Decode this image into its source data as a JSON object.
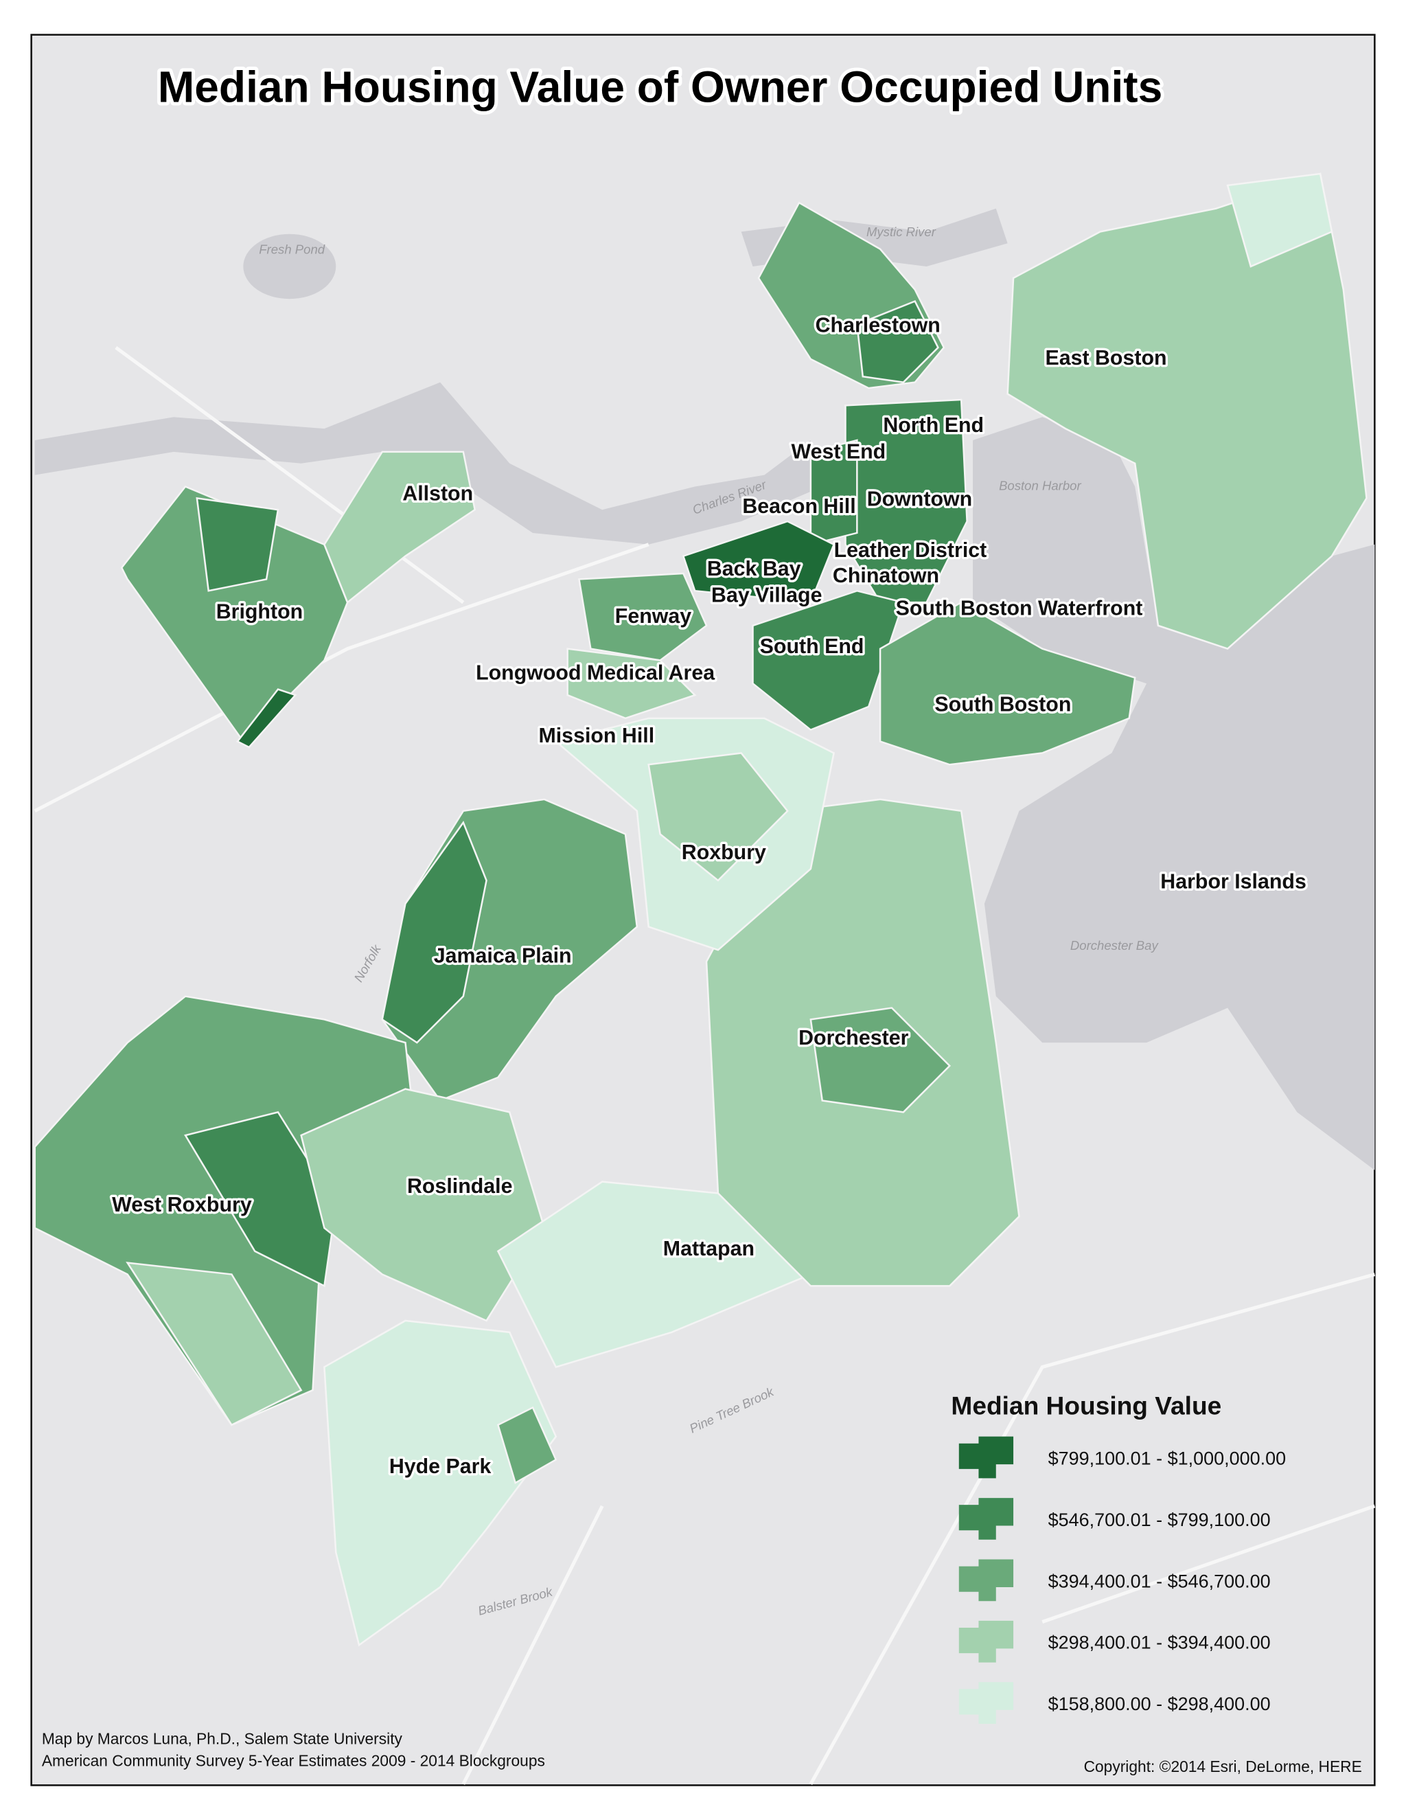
{
  "title": "Median Housing Value of Owner Occupied Units",
  "neighborhoods": [
    "Charlestown",
    "East Boston",
    "North End",
    "West End",
    "Allston",
    "Beacon Hill",
    "Downtown",
    "Leather District",
    "Back Bay",
    "Chinatown",
    "Brighton",
    "Bay Village",
    "South Boston Waterfront",
    "Fenway",
    "South End",
    "Longwood Medical Area",
    "South Boston",
    "Mission Hill",
    "Roxbury",
    "Harbor Islands",
    "Jamaica Plain",
    "Dorchester",
    "Roslindale",
    "West Roxbury",
    "Mattapan",
    "Hyde Park"
  ],
  "water_labels": [
    "Fresh Pond",
    "Mystic River",
    "Boston Harbor",
    "Dorchester Bay",
    "Charles River",
    "Norfolk",
    "Pine Tree Brook",
    "Balster Brook"
  ],
  "legend": {
    "title": "Median Housing Value",
    "classes": [
      "$799,100.01 - $1,000,000.00",
      "$546,700.01 - $799,100.00",
      "$394,400.01 - $546,700.00",
      "$298,400.01 - $394,400.00",
      "$158,800.00 - $298,400.00"
    ]
  },
  "credits": {
    "author": "Map by Marcos Luna, Ph.D., Salem State University",
    "source": "American Community Survey 5-Year Estimates 2009 - 2014 Blockgroups",
    "copyright": "Copyright: ©2014 Esri, DeLorme, HERE"
  }
}
